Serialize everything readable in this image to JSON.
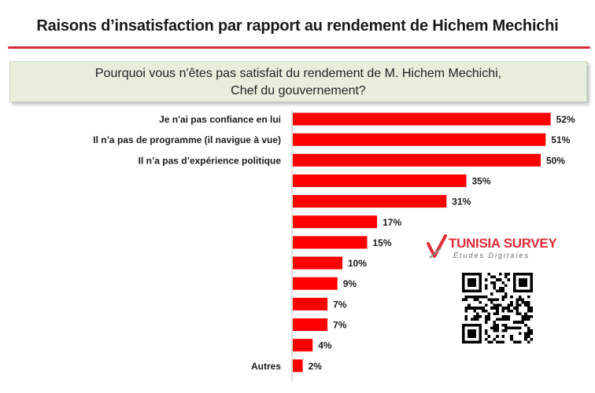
{
  "header": {
    "title": "Raisons d’insatisfaction par rapport au rendement de Hichem Mechichi"
  },
  "question": {
    "line1": "Pourquoi vous n'êtes pas satisfait du rendement de M. Hichem Mechichi,",
    "line2": "Chef du gouvernement?"
  },
  "logo": {
    "brand": "TUNISIA SURVEY",
    "tagline": "Études Digitales",
    "color": "#e02b36",
    "icon": "check-mark-icon"
  },
  "qr": {
    "icon": "qr-code-icon"
  },
  "chart_data": {
    "type": "bar",
    "orientation": "horizontal",
    "bar_color": "#ff0000",
    "categories": [
      "Je n'ai pas confiance en lui",
      "Il n’a pas de programme (il navigue à vue)",
      "Il n’a pas d’expérience politique",
      "",
      "",
      "",
      "",
      "",
      "",
      "",
      "",
      "",
      "Autres"
    ],
    "values": [
      52,
      51,
      50,
      35,
      31,
      17,
      15,
      10,
      9,
      7,
      7,
      4,
      2
    ],
    "value_labels": [
      "52%",
      "51%",
      "50%",
      "35%",
      "31%",
      "17%",
      "15%",
      "10%",
      "9%",
      "7%",
      "7%",
      "4%",
      "2%"
    ],
    "xlim": [
      0,
      100
    ],
    "grid": false,
    "legend": "none"
  }
}
